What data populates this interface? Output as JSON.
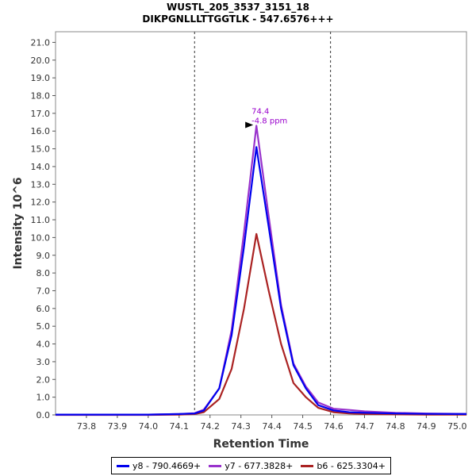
{
  "chart_data": {
    "type": "line",
    "title": "WUSTL_205_3537_3151_18",
    "subtitle": "DIKPGNLLLTTGGTLK - 547.6576+++",
    "xlabel": "Retention Time",
    "ylabel": "Intensity 10^6",
    "xlim": [
      73.7,
      75.03
    ],
    "ylim": [
      0,
      21.6
    ],
    "x_ticks": [
      "73.8",
      "73.9",
      "74.0",
      "74.1",
      "74.2",
      "74.3",
      "74.4",
      "74.5",
      "74.6",
      "74.7",
      "74.8",
      "74.9",
      "75.0"
    ],
    "y_ticks": [
      "0.0",
      "1.0",
      "2.0",
      "3.0",
      "4.0",
      "5.0",
      "6.0",
      "7.0",
      "8.0",
      "9.0",
      "10.0",
      "11.0",
      "12.0",
      "13.0",
      "14.0",
      "15.0",
      "16.0",
      "17.0",
      "18.0",
      "19.0",
      "20.0",
      "21.0"
    ],
    "grid": false,
    "legend_position": "bottom",
    "integration_bounds": [
      74.15,
      74.59
    ],
    "annotation": {
      "x": 74.35,
      "y": 16.3,
      "lines": [
        "74.4",
        "-4.8 ppm"
      ],
      "color": "#9900cc"
    },
    "series": [
      {
        "name": "y8 - 790.4669+",
        "color": "#0000ee",
        "points": [
          [
            73.7,
            0.02
          ],
          [
            74.0,
            0.02
          ],
          [
            74.1,
            0.05
          ],
          [
            74.15,
            0.08
          ],
          [
            74.18,
            0.25
          ],
          [
            74.23,
            1.5
          ],
          [
            74.27,
            4.5
          ],
          [
            74.31,
            9.5
          ],
          [
            74.35,
            15.1
          ],
          [
            74.39,
            10.6
          ],
          [
            74.43,
            6.0
          ],
          [
            74.47,
            2.8
          ],
          [
            74.51,
            1.5
          ],
          [
            74.55,
            0.55
          ],
          [
            74.6,
            0.25
          ],
          [
            74.65,
            0.15
          ],
          [
            74.7,
            0.12
          ],
          [
            74.8,
            0.08
          ],
          [
            74.9,
            0.06
          ],
          [
            75.03,
            0.05
          ]
        ]
      },
      {
        "name": "y7 - 677.3828+",
        "color": "#9933cc",
        "points": [
          [
            73.7,
            0.02
          ],
          [
            74.0,
            0.02
          ],
          [
            74.1,
            0.05
          ],
          [
            74.15,
            0.1
          ],
          [
            74.18,
            0.3
          ],
          [
            74.23,
            1.5
          ],
          [
            74.27,
            4.8
          ],
          [
            74.31,
            10.3
          ],
          [
            74.35,
            16.3
          ],
          [
            74.39,
            11.2
          ],
          [
            74.43,
            6.2
          ],
          [
            74.47,
            2.9
          ],
          [
            74.51,
            1.6
          ],
          [
            74.55,
            0.7
          ],
          [
            74.6,
            0.35
          ],
          [
            74.65,
            0.28
          ],
          [
            74.7,
            0.2
          ],
          [
            74.8,
            0.12
          ],
          [
            74.9,
            0.08
          ],
          [
            75.03,
            0.06
          ]
        ]
      },
      {
        "name": "b6 - 625.3304+",
        "color": "#aa2222",
        "points": [
          [
            73.7,
            0.0
          ],
          [
            74.0,
            0.0
          ],
          [
            74.1,
            0.02
          ],
          [
            74.15,
            0.05
          ],
          [
            74.18,
            0.15
          ],
          [
            74.23,
            0.9
          ],
          [
            74.27,
            2.6
          ],
          [
            74.31,
            6.0
          ],
          [
            74.35,
            10.2
          ],
          [
            74.39,
            7.0
          ],
          [
            74.43,
            4.0
          ],
          [
            74.47,
            1.8
          ],
          [
            74.51,
            1.0
          ],
          [
            74.55,
            0.4
          ],
          [
            74.6,
            0.15
          ],
          [
            74.65,
            0.08
          ],
          [
            74.7,
            0.05
          ],
          [
            74.8,
            0.03
          ],
          [
            74.9,
            0.02
          ],
          [
            75.03,
            0.02
          ]
        ]
      }
    ]
  }
}
